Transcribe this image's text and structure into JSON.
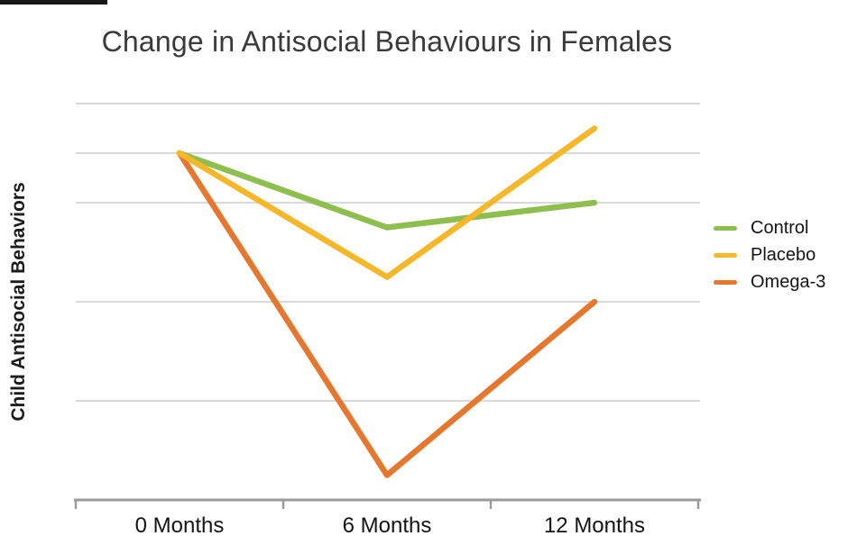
{
  "chart_data": {
    "type": "line",
    "title": "Change in Antisocial Behaviours in Females",
    "xlabel": "",
    "ylabel": "Child Antisocial Behaviors",
    "categories": [
      "0 Months",
      "6 Months",
      "12 Months"
    ],
    "series": [
      {
        "name": "Control",
        "color": "#8DBE4E",
        "values": [
          3.5,
          2.75,
          3.0
        ]
      },
      {
        "name": "Placebo",
        "color": "#F6B82A",
        "values": [
          3.5,
          2.25,
          3.75
        ]
      },
      {
        "name": "Omega-3",
        "color": "#E5772E",
        "values": [
          3.5,
          0.25,
          2.0
        ]
      }
    ],
    "ylim": [
      0,
      4.4
    ],
    "y_tick_labels_shown": false,
    "gridlines_y": [
      1,
      2,
      3,
      3.5,
      4
    ],
    "grid": "horizontal",
    "legend_position": "right",
    "gridline_color": "#D9D9D9",
    "axis_color": "#9B9B9B",
    "title_color": "#3a3a3a",
    "text_color": "#141414"
  }
}
